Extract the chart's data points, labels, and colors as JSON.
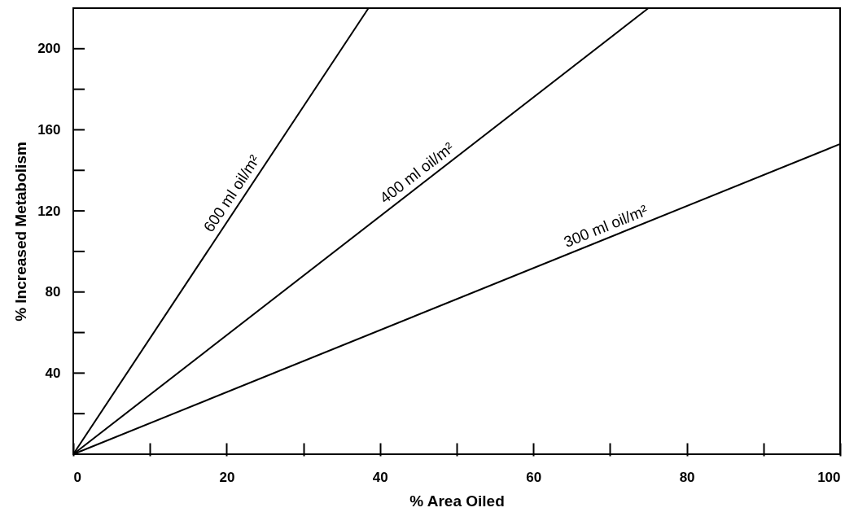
{
  "chart_data": {
    "type": "line",
    "xlabel": "% Area Oiled",
    "ylabel": "% Increased Metabolism",
    "series": [
      {
        "name": "600 ml oil/m²",
        "color": "#000000",
        "x": [
          0,
          38.5
        ],
        "values": [
          0,
          220
        ]
      },
      {
        "name": "400 ml oil/m²",
        "color": "#000000",
        "x": [
          0,
          75
        ],
        "values": [
          0,
          220
        ]
      },
      {
        "name": "300 ml oil/m²",
        "color": "#000000",
        "x": [
          0,
          100
        ],
        "values": [
          0,
          153
        ]
      }
    ],
    "xlim": [
      0,
      100
    ],
    "ylim": [
      0,
      220
    ],
    "xticks": [
      0,
      {
        "value": 10,
        "label": null
      },
      20,
      {
        "value": 30,
        "label": null
      },
      40,
      {
        "value": 50,
        "label": null
      },
      60,
      {
        "value": 70,
        "label": null
      },
      80,
      {
        "value": 90,
        "label": null
      },
      100
    ],
    "yticks": [
      {
        "value": 20,
        "label": null
      },
      40,
      {
        "value": 60,
        "label": null
      },
      80,
      {
        "value": 100,
        "label": null
      },
      120,
      {
        "value": 140,
        "label": null
      },
      160,
      {
        "value": 180,
        "label": null
      },
      200
    ],
    "grid": false,
    "legend": false,
    "marker": "none",
    "line_style": "solid"
  }
}
